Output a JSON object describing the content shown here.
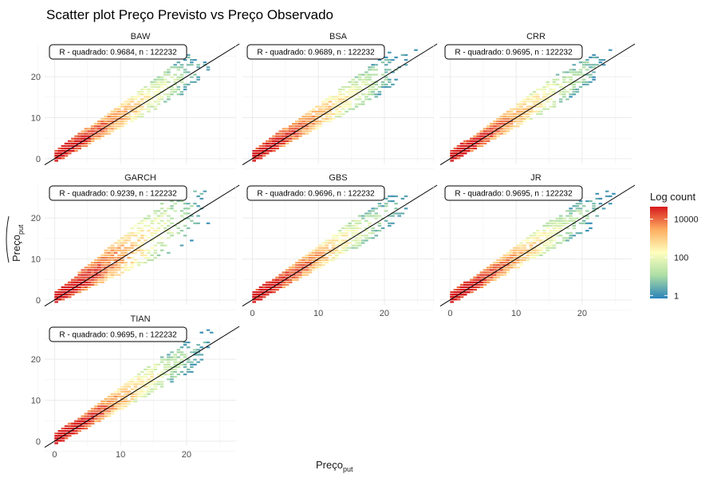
{
  "chart_data": {
    "type": "heatmap",
    "title": "Scatter plot Preço Previsto vs Preço Observado",
    "xlabel": "Preço",
    "xlabel_subscript": "put",
    "ylabel": "Preço",
    "ylabel_subscript": "put",
    "xlim": [
      -1.5,
      27.5
    ],
    "ylim": [
      -1.2,
      28
    ],
    "x_ticks": [
      0,
      10,
      20
    ],
    "y_ticks": [
      0,
      10,
      20
    ],
    "grid": true,
    "reference_line": {
      "slope": 1,
      "intercept": 0
    },
    "legend": {
      "title": "Log count",
      "position": "right",
      "ticks": [
        1,
        100,
        10000
      ],
      "tick_labels": [
        "1",
        "100",
        "10000"
      ],
      "min": 0.7,
      "max": 45000
    },
    "colors": [
      "#2b83ba",
      "#abdda4",
      "#ffffbf",
      "#fdae61",
      "#d7191c"
    ],
    "facets": [
      {
        "name": "BAW",
        "annotation": "R - quadrado: 0.9684, n : 122232",
        "spread": 1.0,
        "bias": 0.1
      },
      {
        "name": "BSA",
        "annotation": "R - quadrado: 0.9689, n : 122232",
        "spread": 1.0,
        "bias": 0.1
      },
      {
        "name": "CRR",
        "annotation": "R - quadrado: 0.9695, n : 122232",
        "spread": 0.9,
        "bias": 0.06
      },
      {
        "name": "GARCH",
        "annotation": "R - quadrado: 0.9239, n : 122232",
        "spread": 1.9,
        "bias": 0.24
      },
      {
        "name": "GBS",
        "annotation": "R - quadrado: 0.9696, n : 122232",
        "spread": 0.9,
        "bias": 0.06
      },
      {
        "name": "JR",
        "annotation": "R - quadrado: 0.9695, n : 122232",
        "spread": 0.9,
        "bias": 0.06
      },
      {
        "name": "TIAN",
        "annotation": "R - quadrado: 0.9695, n : 122232",
        "spread": 0.9,
        "bias": 0.06
      }
    ]
  }
}
